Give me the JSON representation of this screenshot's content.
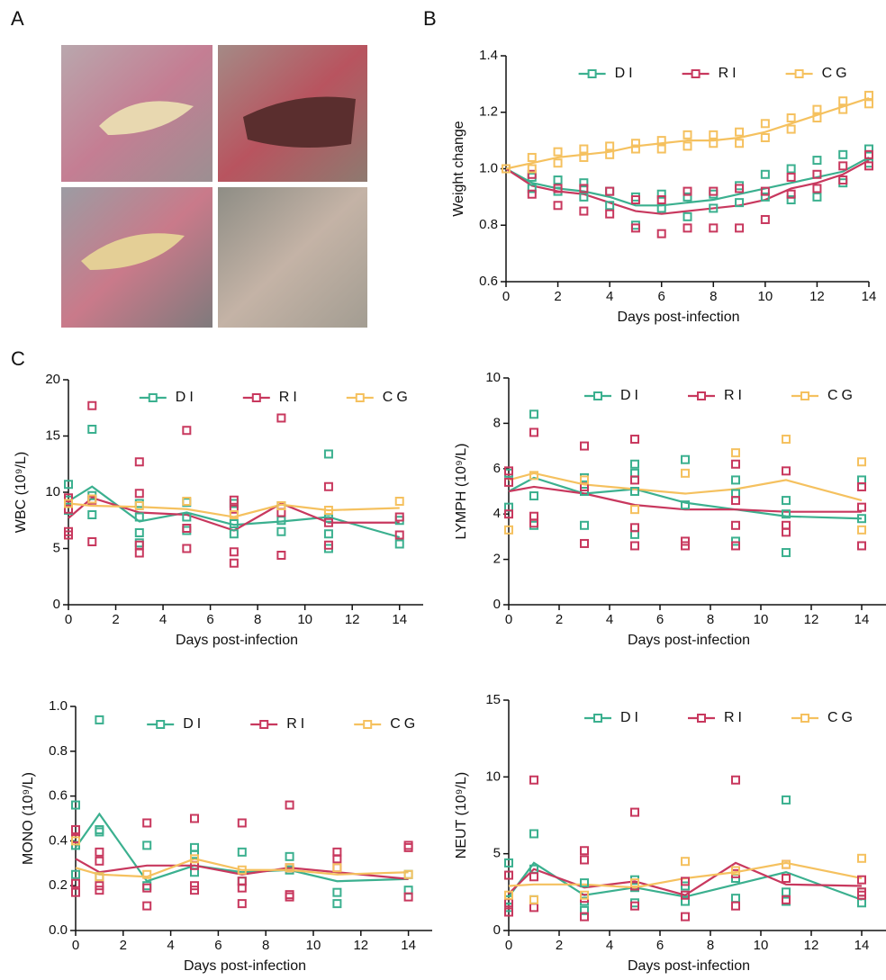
{
  "panel_labels": [
    "A",
    "B",
    "C"
  ],
  "chart_data": [
    {
      "type": "line",
      "x_label": "Days post-infection",
      "y_label": "Weight change",
      "legend": "top",
      "x": [
        0,
        1,
        2,
        3,
        4,
        5,
        6,
        7,
        8,
        9,
        10,
        11,
        12,
        13,
        14
      ],
      "xlim": [
        0,
        14
      ],
      "xticks": [
        0,
        2,
        4,
        6,
        8,
        10,
        12,
        14
      ],
      "ylim": [
        0.6,
        1.4
      ],
      "yticks": [
        0.6,
        0.8,
        {
          "value": 1.0,
          "label": "1.0"
        },
        1.2,
        1.4
      ],
      "series": [
        {
          "name": "DI",
          "color": "#3bb08f",
          "values": [
            1.0,
            0.95,
            0.93,
            0.92,
            0.9,
            0.87,
            0.87,
            0.88,
            0.89,
            0.91,
            0.93,
            0.95,
            0.97,
            0.99,
            1.04
          ],
          "replicates": [
            [
              1.0
            ],
            [
              0.97,
              0.93
            ],
            [
              0.96,
              0.92
            ],
            [
              0.95,
              0.9
            ],
            [
              0.92,
              0.87
            ],
            [
              0.9,
              0.8
            ],
            [
              0.91,
              0.86
            ],
            [
              0.9,
              0.83
            ],
            [
              0.91,
              0.86
            ],
            [
              0.94,
              0.88
            ],
            [
              0.98,
              0.9
            ],
            [
              1.0,
              0.89
            ],
            [
              1.03,
              0.9
            ],
            [
              1.05,
              0.95
            ],
            [
              1.07,
              1.02
            ]
          ]
        },
        {
          "name": "RI",
          "color": "#c8385e",
          "values": [
            1.0,
            0.94,
            0.92,
            0.91,
            0.88,
            0.85,
            0.84,
            0.85,
            0.86,
            0.87,
            0.89,
            0.93,
            0.95,
            0.98,
            1.03
          ],
          "replicates": [
            [
              1.0
            ],
            [
              0.98,
              0.91
            ],
            [
              0.93,
              0.87
            ],
            [
              0.93,
              0.85
            ],
            [
              0.92,
              0.84
            ],
            [
              0.89,
              0.79
            ],
            [
              0.89,
              0.77
            ],
            [
              0.92,
              0.79
            ],
            [
              0.92,
              0.79
            ],
            [
              0.93,
              0.79
            ],
            [
              0.92,
              0.82
            ],
            [
              0.97,
              0.91
            ],
            [
              0.98,
              0.93
            ],
            [
              1.01,
              0.96
            ],
            [
              1.05,
              1.01
            ]
          ]
        },
        {
          "name": "CG",
          "color": "#f5c15f",
          "values": [
            1.0,
            1.02,
            1.04,
            1.05,
            1.06,
            1.08,
            1.09,
            1.1,
            1.1,
            1.11,
            1.13,
            1.16,
            1.19,
            1.22,
            1.25
          ],
          "replicates": [
            [
              1.0
            ],
            [
              1.04,
              1.0
            ],
            [
              1.06,
              1.02
            ],
            [
              1.07,
              1.04
            ],
            [
              1.08,
              1.05
            ],
            [
              1.09,
              1.07
            ],
            [
              1.1,
              1.07
            ],
            [
              1.12,
              1.08
            ],
            [
              1.12,
              1.09
            ],
            [
              1.13,
              1.09
            ],
            [
              1.16,
              1.11
            ],
            [
              1.18,
              1.14
            ],
            [
              1.21,
              1.18
            ],
            [
              1.24,
              1.21
            ],
            [
              1.26,
              1.23
            ]
          ]
        }
      ]
    },
    {
      "type": "line",
      "x_label": "Days post-infection",
      "y_label": "WBC (10⁹/L)",
      "legend": "top",
      "x": [
        0,
        1,
        3,
        5,
        7,
        9,
        11,
        14
      ],
      "xlim": [
        0,
        15
      ],
      "xticks": [
        0,
        2,
        4,
        6,
        8,
        10,
        12,
        14
      ],
      "ylim": [
        0,
        20
      ],
      "yticks": [
        0,
        5,
        10,
        15,
        20
      ],
      "series": [
        {
          "name": "DI",
          "color": "#3bb08f",
          "values": [
            9.2,
            10.5,
            7.4,
            8.2,
            7.1,
            7.4,
            7.8,
            6.0
          ],
          "replicates": [
            [
              10.7,
              9.3,
              8.4
            ],
            [
              15.6,
              9.7,
              8.0
            ],
            [
              9.0,
              6.4,
              5.5,
              7.8
            ],
            [
              9.1,
              7.8,
              6.6
            ],
            [
              6.3,
              7.2,
              9.0
            ],
            [
              6.5,
              7.5,
              8.8
            ],
            [
              13.4,
              6.3,
              5.0,
              7.7
            ],
            [
              5.4,
              7.5
            ]
          ]
        },
        {
          "name": "RI",
          "color": "#c8385e",
          "values": [
            7.7,
            9.5,
            8.2,
            8.0,
            6.6,
            9.0,
            7.3,
            7.3
          ],
          "replicates": [
            [
              6.5,
              6.2,
              8.5,
              9.5
            ],
            [
              17.7,
              5.6,
              9.3
            ],
            [
              12.7,
              9.9,
              4.6,
              5.3
            ],
            [
              15.5,
              6.8,
              5.0
            ],
            [
              9.3,
              4.7,
              3.7,
              8.5
            ],
            [
              16.6,
              8.2,
              4.4
            ],
            [
              10.5,
              5.3,
              7.3
            ],
            [
              7.8,
              6.2
            ]
          ]
        },
        {
          "name": "CG",
          "color": "#f5c15f",
          "values": [
            9.0,
            8.8,
            8.7,
            8.5,
            7.8,
            8.9,
            8.4,
            8.6
          ],
          "replicates": [
            [
              9.0
            ],
            [
              9.4
            ],
            [
              8.8
            ],
            [
              9.2
            ],
            [
              8.0
            ],
            [
              8.8
            ],
            [
              8.4
            ],
            [
              9.2
            ]
          ]
        }
      ]
    },
    {
      "type": "line",
      "x_label": "Days post-infection",
      "y_label": "LYMPH (10⁹/L)",
      "legend": "top",
      "x": [
        0,
        1,
        3,
        5,
        7,
        9,
        11,
        14
      ],
      "xlim": [
        0,
        15
      ],
      "xticks": [
        0,
        2,
        4,
        6,
        8,
        10,
        12,
        14
      ],
      "ylim": [
        0,
        10
      ],
      "yticks": [
        0,
        2,
        4,
        6,
        8,
        10
      ],
      "series": [
        {
          "name": "DI",
          "color": "#3bb08f",
          "values": [
            5.0,
            5.6,
            4.9,
            5.1,
            4.5,
            4.2,
            3.9,
            3.8
          ],
          "replicates": [
            [
              5.8,
              4.3
            ],
            [
              8.4,
              4.8,
              3.5
            ],
            [
              5.6,
              3.5,
              5.0
            ],
            [
              6.2,
              5.8,
              3.1,
              5.0
            ],
            [
              6.4,
              4.4
            ],
            [
              5.5,
              4.9,
              2.8
            ],
            [
              4.6,
              2.3,
              4.0
            ],
            [
              5.5,
              3.8,
              2.6
            ]
          ]
        },
        {
          "name": "RI",
          "color": "#c8385e",
          "values": [
            5.0,
            5.2,
            4.9,
            4.4,
            4.2,
            4.2,
            4.1,
            4.1
          ],
          "replicates": [
            [
              5.9,
              5.4,
              4.0
            ],
            [
              7.6,
              3.9,
              3.6
            ],
            [
              7.0,
              5.2,
              2.7
            ],
            [
              7.3,
              5.5,
              3.4,
              2.6
            ],
            [
              2.8,
              2.6
            ],
            [
              6.2,
              4.6,
              3.5,
              2.6
            ],
            [
              5.9,
              3.5,
              3.2
            ],
            [
              5.2,
              4.3,
              2.6
            ]
          ]
        },
        {
          "name": "CG",
          "color": "#f5c15f",
          "values": [
            5.5,
            5.8,
            5.3,
            5.1,
            4.9,
            5.1,
            5.5,
            4.6
          ],
          "replicates": [
            [
              3.3
            ],
            [
              5.7
            ],
            [
              5.5
            ],
            [
              4.2
            ],
            [
              5.8
            ],
            [
              6.7
            ],
            [
              7.3
            ],
            [
              6.3,
              3.3
            ]
          ]
        }
      ]
    },
    {
      "type": "line",
      "x_label": "Days post-infection",
      "y_label": "MONO (10⁹/L)",
      "legend": "top",
      "x": [
        0,
        1,
        3,
        5,
        7,
        9,
        11,
        14
      ],
      "xlim": [
        0,
        15
      ],
      "xticks": [
        0,
        2,
        4,
        6,
        8,
        10,
        12,
        14
      ],
      "ylim": [
        0,
        1
      ],
      "yticks": [
        {
          "value": 0,
          "label": "0.0"
        },
        0.2,
        0.4,
        0.6,
        0.8,
        {
          "value": 1,
          "label": "1.0"
        }
      ],
      "series": [
        {
          "name": "DI",
          "color": "#3bb08f",
          "values": [
            0.37,
            0.52,
            0.22,
            0.29,
            0.26,
            0.27,
            0.22,
            0.23
          ],
          "replicates": [
            [
              0.56,
              0.38,
              0.25
            ],
            [
              0.94,
              0.45,
              0.44,
              0.24
            ],
            [
              0.38,
              0.2
            ],
            [
              0.37,
              0.34,
              0.26
            ],
            [
              0.35,
              0.22
            ],
            [
              0.33,
              0.27
            ],
            [
              0.17,
              0.12
            ],
            [
              0.25,
              0.18
            ]
          ]
        },
        {
          "name": "RI",
          "color": "#c8385e",
          "values": [
            0.32,
            0.26,
            0.29,
            0.29,
            0.25,
            0.28,
            0.26,
            0.23
          ],
          "replicates": [
            [
              0.45,
              0.41,
              0.21,
              0.17
            ],
            [
              0.35,
              0.31,
              0.2,
              0.18
            ],
            [
              0.48,
              0.19,
              0.11
            ],
            [
              0.5,
              0.29,
              0.2,
              0.18
            ],
            [
              0.48,
              0.22,
              0.19,
              0.12
            ],
            [
              0.56,
              0.28,
              0.16,
              0.15
            ],
            [
              0.35,
              0.32,
              0.28
            ],
            [
              0.38,
              0.37,
              0.15
            ]
          ]
        },
        {
          "name": "CG",
          "color": "#f5c15f",
          "values": [
            0.28,
            0.25,
            0.24,
            0.32,
            0.27,
            0.27,
            0.25,
            0.26
          ],
          "replicates": [
            [
              0.4
            ],
            [
              0.24
            ],
            [
              0.25
            ],
            [
              0.32
            ],
            [
              0.27
            ],
            [
              0.28
            ],
            [
              0.28
            ],
            [
              0.25
            ]
          ]
        }
      ]
    },
    {
      "type": "line",
      "x_label": "Days post-infection",
      "y_label": "NEUT (10⁹/L)",
      "legend": "top",
      "x": [
        0,
        1,
        3,
        5,
        7,
        9,
        11,
        14
      ],
      "xlim": [
        0,
        15
      ],
      "xticks": [
        0,
        2,
        4,
        6,
        8,
        10,
        12,
        14
      ],
      "ylim": [
        0,
        15
      ],
      "yticks": [
        0,
        5,
        10,
        15
      ],
      "series": [
        {
          "name": "DI",
          "color": "#3bb08f",
          "values": [
            2.2,
            4.4,
            2.3,
            2.8,
            2.2,
            3.0,
            3.8,
            2.0
          ],
          "replicates": [
            [
              4.4,
              2.0,
              1.5
            ],
            [
              6.3,
              4.0,
              2.0
            ],
            [
              3.1,
              1.9,
              1.3
            ],
            [
              3.3,
              2.8,
              1.8
            ],
            [
              2.9,
              1.9
            ],
            [
              3.4,
              2.1
            ],
            [
              8.5,
              2.5,
              1.9
            ],
            [
              2.5,
              1.8
            ]
          ]
        },
        {
          "name": "RI",
          "color": "#c8385e",
          "values": [
            2.4,
            4.0,
            2.8,
            3.2,
            2.3,
            4.4,
            3.0,
            2.9
          ],
          "replicates": [
            [
              3.6,
              1.2,
              1.8
            ],
            [
              9.8,
              3.5,
              1.5
            ],
            [
              5.2,
              4.6,
              2.1,
              0.9
            ],
            [
              7.7,
              2.9,
              1.6
            ],
            [
              3.2,
              2.3,
              0.9
            ],
            [
              9.8,
              3.7,
              1.6
            ],
            [
              4.3,
              3.4,
              2.0
            ],
            [
              3.3,
              2.5,
              2.3
            ]
          ]
        },
        {
          "name": "CG",
          "color": "#f5c15f",
          "values": [
            2.9,
            3.0,
            3.0,
            2.8,
            3.4,
            3.8,
            4.4,
            3.4
          ],
          "replicates": [
            [
              2.3
            ],
            [
              2.0
            ],
            [
              2.3
            ],
            [
              3.1
            ],
            [
              4.5
            ],
            [
              3.9
            ],
            [
              4.3
            ],
            [
              4.7
            ]
          ]
        }
      ]
    }
  ]
}
